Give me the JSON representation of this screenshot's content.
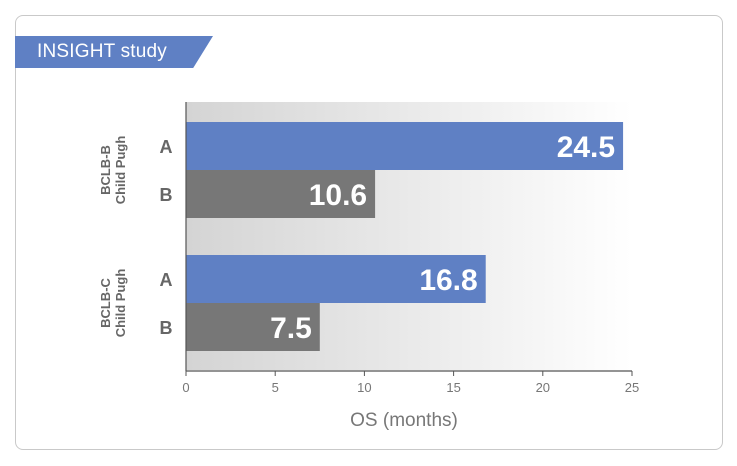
{
  "header": {
    "title": "INSIGHT study"
  },
  "chart_data": {
    "type": "bar",
    "orientation": "horizontal",
    "title": "INSIGHT study",
    "xlabel": "OS (months)",
    "ylabel": "",
    "xlim": [
      0,
      25
    ],
    "xticks": [
      0,
      5,
      10,
      15,
      20,
      25
    ],
    "grid": false,
    "groups": [
      {
        "label_lines": [
          "BCLB-B",
          "Child Pugh"
        ],
        "bars": [
          {
            "category": "A",
            "value": 24.5,
            "label": "24.5"
          },
          {
            "category": "B",
            "value": 10.6,
            "label": "10.6"
          }
        ]
      },
      {
        "label_lines": [
          "BCLB-C",
          "Child Pugh"
        ],
        "bars": [
          {
            "category": "A",
            "value": 16.8,
            "label": "16.8"
          },
          {
            "category": "B",
            "value": 7.5,
            "label": "7.5"
          }
        ]
      }
    ],
    "colors": {
      "A": "#5f80c4",
      "B": "#777777"
    }
  }
}
